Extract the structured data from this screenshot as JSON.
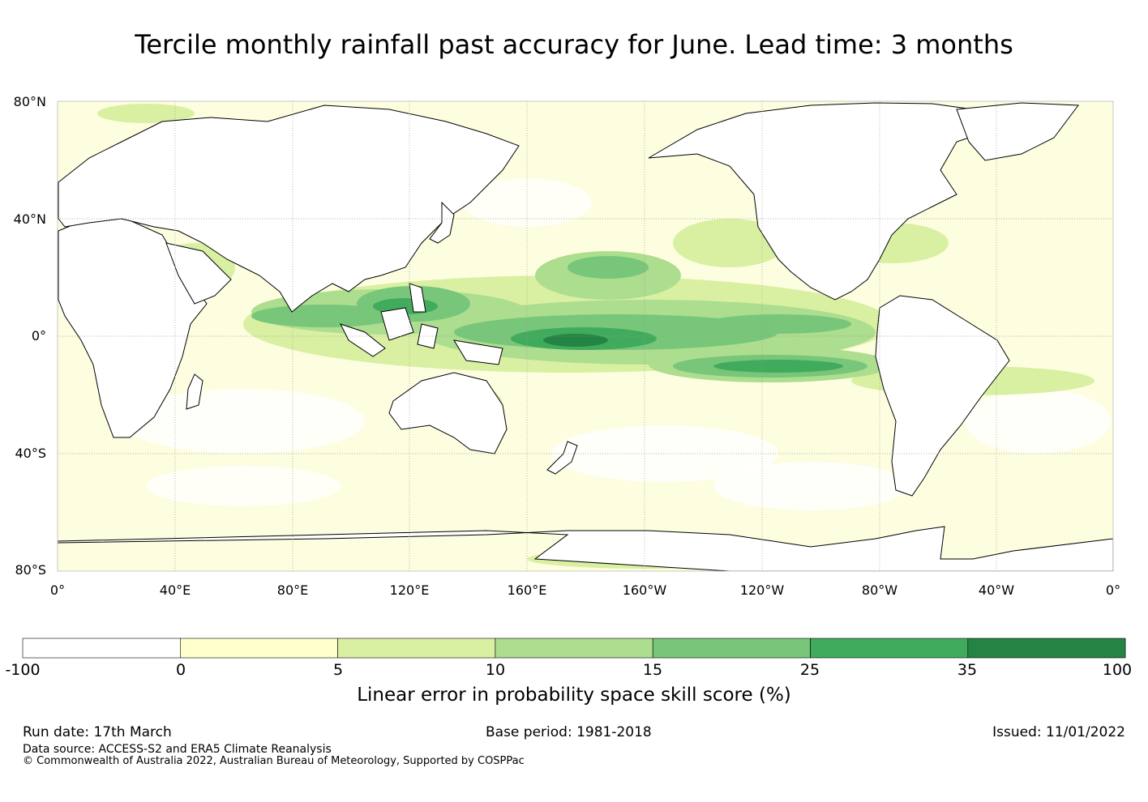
{
  "title": "Tercile monthly rainfall past accuracy for June. Lead time: 3 months",
  "map": {
    "lat_labels": [
      "80°N",
      "40°N",
      "0°",
      "40°S",
      "80°S"
    ],
    "lon_labels": [
      "0°",
      "40°E",
      "80°E",
      "120°E",
      "160°E",
      "160°W",
      "120°W",
      "80°W",
      "40°W",
      "0°"
    ],
    "land_color": "#ffffff",
    "coastline_color": "#000000",
    "gridline_color": "#9a9a9a"
  },
  "colorbar": {
    "ticks": [
      "-100",
      "0",
      "5",
      "10",
      "15",
      "25",
      "35",
      "100"
    ],
    "colors": [
      "#ffffff",
      "#ffffcc",
      "#d9f0a3",
      "#addd8e",
      "#78c679",
      "#41ab5d",
      "#238443"
    ],
    "label": "Linear error in probability space skill score (%)"
  },
  "footer": {
    "run_date": "Run date: 17th March",
    "base_period": "Base period: 1981-2018",
    "issued": "Issued: 11/01/2022",
    "data_source": "Data source: ACCESS-S2 and ERA5 Climate Reanalysis",
    "copyright": "© Commonwealth of Australia 2022, Australian Bureau of Meteorology, Supported by COSPPac"
  }
}
